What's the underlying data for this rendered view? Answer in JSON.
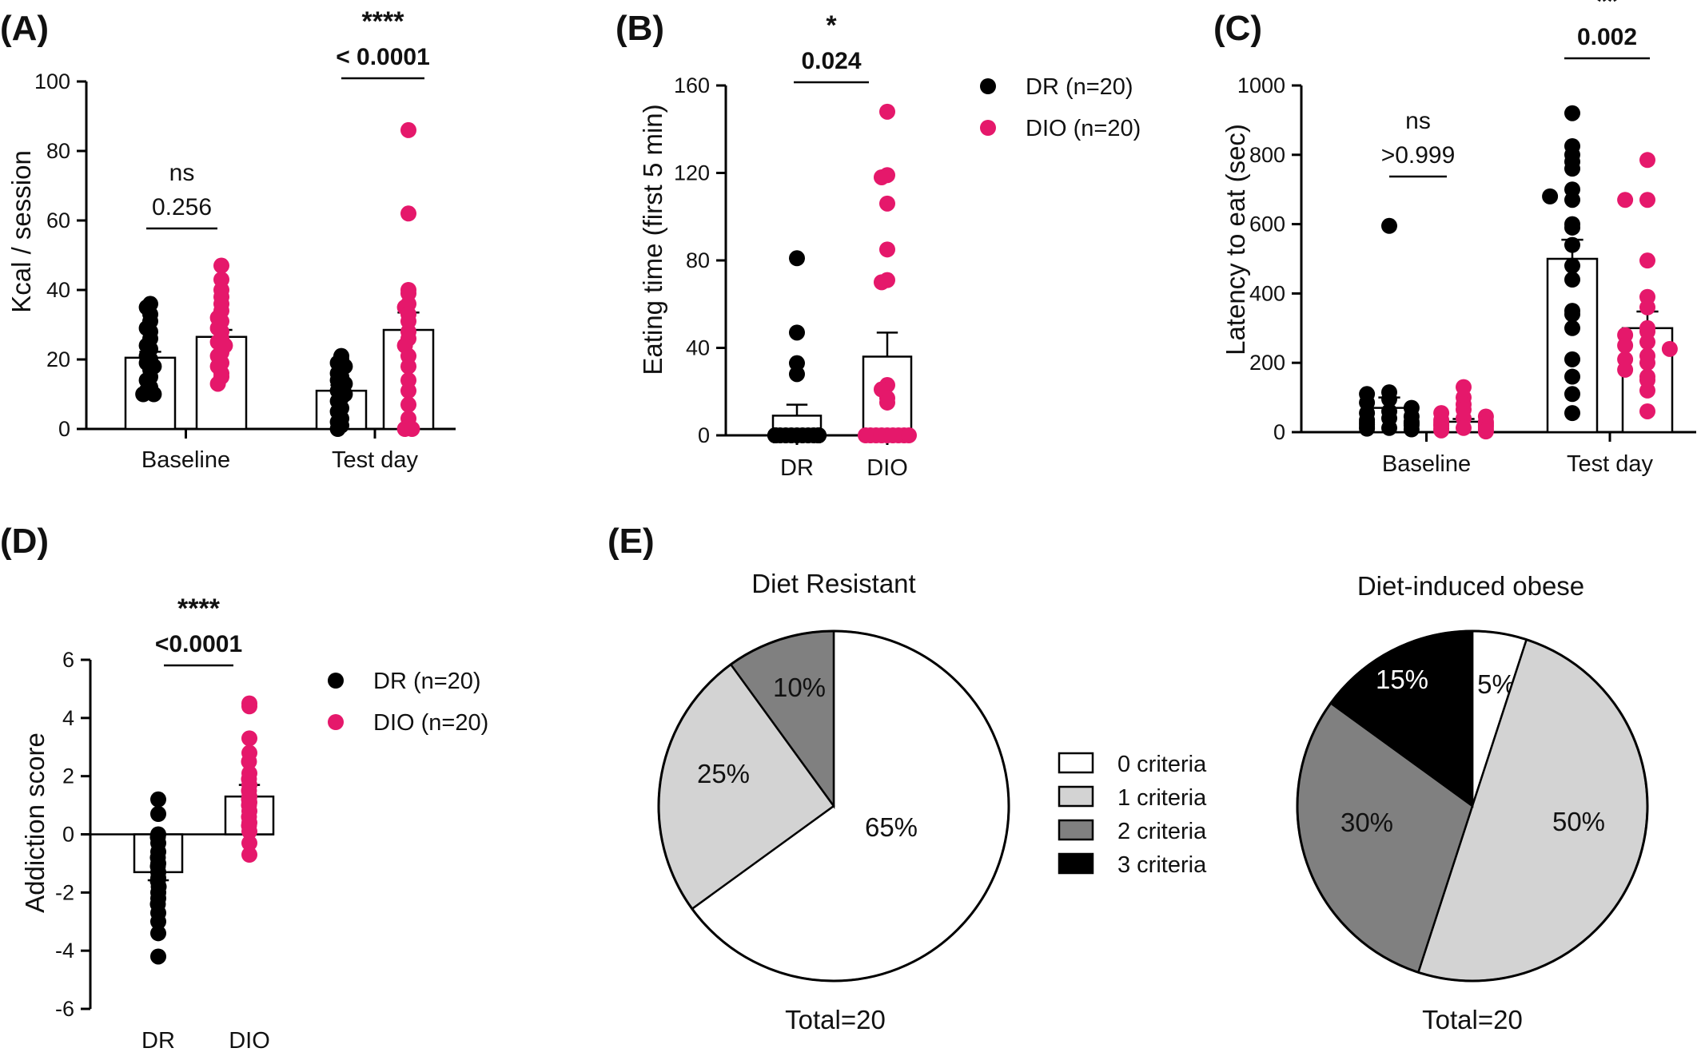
{
  "panels": {
    "A": {
      "letter": "(A)",
      "chart_data": {
        "type": "bar",
        "ylabel": "Kcal / session",
        "ylim": [
          0,
          100
        ],
        "yticks": [
          "0",
          "20",
          "40",
          "60",
          "80",
          "100"
        ],
        "categories": [
          "Baseline",
          "Test day"
        ],
        "series": [
          {
            "name": "DR (n=20)",
            "color": "#000000",
            "means": [
              20.5,
              11.0
            ],
            "sem": [
              1.7,
              1.6
            ],
            "points": [
              [
                36,
                35,
                33,
                31,
                29,
                28,
                26,
                24,
                23,
                21,
                20,
                19,
                18,
                17,
                15,
                14,
                12,
                11,
                10,
                10
              ],
              [
                21,
                20,
                19,
                18,
                17,
                16,
                15,
                14,
                13,
                12,
                11,
                10,
                9,
                8,
                6,
                5,
                3,
                2,
                1,
                0
              ]
            ]
          },
          {
            "name": "DIO (n=20)",
            "color": "#e5186b",
            "means": [
              26.5,
              28.5
            ],
            "sem": [
              2.0,
              5.0
            ],
            "points": [
              [
                47,
                43,
                40,
                38,
                36,
                34,
                32,
                31,
                29,
                28,
                26,
                25,
                24,
                22,
                21,
                19,
                18,
                16,
                15,
                13
              ],
              [
                86,
                62,
                40,
                39,
                36,
                35,
                33,
                31,
                28,
                26,
                24,
                21,
                18,
                14,
                11,
                7,
                3,
                1,
                0,
                0
              ]
            ]
          }
        ],
        "comparisons": [
          {
            "stars": "ns",
            "p": "0.256",
            "bold": false
          },
          {
            "stars": "****",
            "p": "< 0.0001",
            "bold": true
          }
        ]
      }
    },
    "B": {
      "letter": "(B)",
      "chart_data": {
        "type": "bar",
        "ylabel": "Eating time (first 5 min)",
        "ylim": [
          0,
          160
        ],
        "yticks": [
          "0",
          "40",
          "80",
          "120",
          "160"
        ],
        "categories": [
          "DR",
          "DIO"
        ],
        "series": [
          {
            "name": "DR (n=20)",
            "color": "#000000",
            "mean": 9,
            "sem": 5,
            "points": [
              81,
              47,
              33,
              28,
              0,
              0,
              0,
              0,
              0,
              0,
              0,
              0,
              0,
              0,
              0,
              0,
              0,
              0,
              0,
              0
            ]
          },
          {
            "name": "DIO (n=20)",
            "color": "#e5186b",
            "mean": 36,
            "sem": 11,
            "points": [
              148,
              119,
              118,
              106,
              85,
              71,
              70,
              23,
              21,
              17,
              15,
              0,
              0,
              0,
              0,
              0,
              0,
              0,
              0,
              0
            ]
          }
        ],
        "comparison": {
          "stars": "*",
          "p": "0.024"
        }
      }
    },
    "C": {
      "letter": "(C)",
      "chart_data": {
        "type": "bar",
        "ylabel": "Latency to eat (sec)",
        "ylim": [
          0,
          1000
        ],
        "yticks": [
          "0",
          "200",
          "400",
          "600",
          "800",
          "1000"
        ],
        "categories": [
          "Baseline",
          "Test day"
        ],
        "series": [
          {
            "name": "DR (n=20)",
            "color": "#000000",
            "means": [
              70,
              500
            ],
            "sem": [
              30,
              55
            ],
            "points": [
              [
                595,
                115,
                110,
                95,
                85,
                70,
                60,
                55,
                45,
                40,
                35,
                30,
                28,
                25,
                22,
                20,
                15,
                12,
                10,
                8
              ],
              [
                920,
                825,
                800,
                780,
                760,
                700,
                680,
                670,
                600,
                590,
                540,
                480,
                440,
                350,
                340,
                300,
                210,
                160,
                110,
                55
              ]
            ]
          },
          {
            "name": "DIO (n=20)",
            "color": "#e5186b",
            "means": [
              30,
              300
            ],
            "sem": [
              8,
              48
            ],
            "points": [
              [
                130,
                100,
                80,
                65,
                55,
                45,
                40,
                35,
                30,
                28,
                25,
                22,
                20,
                18,
                15,
                12,
                10,
                8,
                5,
                2
              ],
              [
                785,
                670,
                670,
                495,
                390,
                360,
                300,
                290,
                280,
                260,
                250,
                240,
                220,
                210,
                200,
                180,
                160,
                150,
                120,
                60
              ]
            ]
          }
        ],
        "comparisons": [
          {
            "stars": "ns",
            "p": ">0.999",
            "bold": false
          },
          {
            "stars": "**",
            "p": "0.002",
            "bold": true
          }
        ]
      }
    },
    "D": {
      "letter": "(D)",
      "chart_data": {
        "type": "bar",
        "ylabel": "Addiction score",
        "ylim": [
          -6,
          6
        ],
        "yticks": [
          "-6",
          "-4",
          "-2",
          "0",
          "2",
          "4",
          "6"
        ],
        "categories": [
          "DR",
          "DIO"
        ],
        "series": [
          {
            "name": "DR (n=20)",
            "color": "#000000",
            "mean": -1.3,
            "sem": 0.28,
            "points": [
              1.2,
              0.7,
              0.0,
              -0.1,
              -0.3,
              -0.6,
              -0.8,
              -1.0,
              -1.1,
              -1.3,
              -1.5,
              -1.6,
              -1.8,
              -2.0,
              -2.2,
              -2.4,
              -2.7,
              -3.0,
              -3.4,
              -4.2
            ]
          },
          {
            "name": "DIO (n=20)",
            "color": "#e5186b",
            "mean": 1.3,
            "sem": 0.4,
            "points": [
              4.5,
              4.4,
              3.3,
              2.8,
              2.5,
              2.1,
              1.9,
              1.7,
              1.5,
              1.3,
              1.2,
              1.1,
              1.0,
              0.8,
              0.6,
              0.4,
              0.3,
              0.1,
              -0.3,
              -0.7
            ]
          }
        ],
        "comparison": {
          "stars": "****",
          "p": "<0.0001"
        }
      }
    },
    "E": {
      "letter": "(E)",
      "chart_data": [
        {
          "type": "pie",
          "title": "Diet Resistant",
          "total": "Total=20",
          "slices": [
            {
              "label": "65%",
              "value": 65
            },
            {
              "label": "25%",
              "value": 25
            },
            {
              "label": "10%",
              "value": 10
            },
            {
              "label": "",
              "value": 0
            }
          ]
        },
        {
          "type": "pie",
          "title": "Diet-induced obese",
          "total": "Total=20",
          "slices": [
            {
              "label": "5%",
              "value": 5
            },
            {
              "label": "50%",
              "value": 50
            },
            {
              "label": "30%",
              "value": 30
            },
            {
              "label": "15%",
              "value": 15
            }
          ]
        }
      ],
      "legend": [
        "0 criteria",
        "1 criteria",
        "2 criteria",
        "3 criteria"
      ],
      "slice_colors": [
        "#ffffff",
        "#d3d3d3",
        "#808080",
        "#000000"
      ]
    }
  },
  "legend_groups": [
    {
      "label": "DR (n=20)",
      "color": "#000000"
    },
    {
      "label": "DIO (n=20)",
      "color": "#e5186b"
    }
  ]
}
